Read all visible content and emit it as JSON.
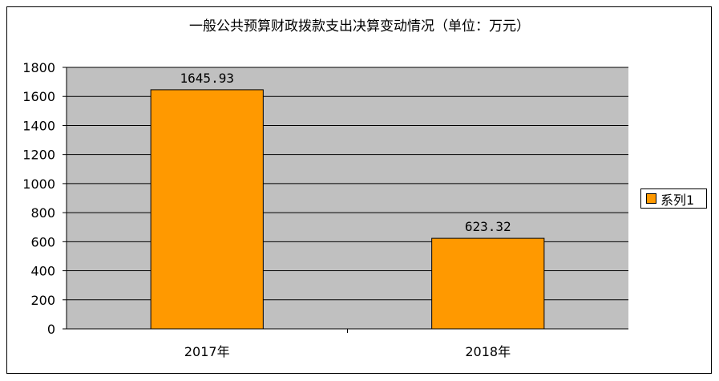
{
  "chart_data": {
    "type": "bar",
    "title": "一般公共预算财政拨款支出决算变动情况（单位：万元）",
    "categories": [
      "2017年",
      "2018年"
    ],
    "series": [
      {
        "name": "系列1",
        "values": [
          1645.93,
          623.32
        ],
        "labels": [
          "1645.93",
          "623.32"
        ]
      }
    ],
    "ylim": [
      0,
      1800
    ],
    "yticks": [
      0,
      200,
      400,
      600,
      800,
      1000,
      1200,
      1400,
      1600,
      1800
    ],
    "grid": true,
    "legend": "right",
    "colors": {
      "bar": "#FF9900",
      "plot_background": "#C0C0C0",
      "bar_border": "#000000"
    }
  }
}
